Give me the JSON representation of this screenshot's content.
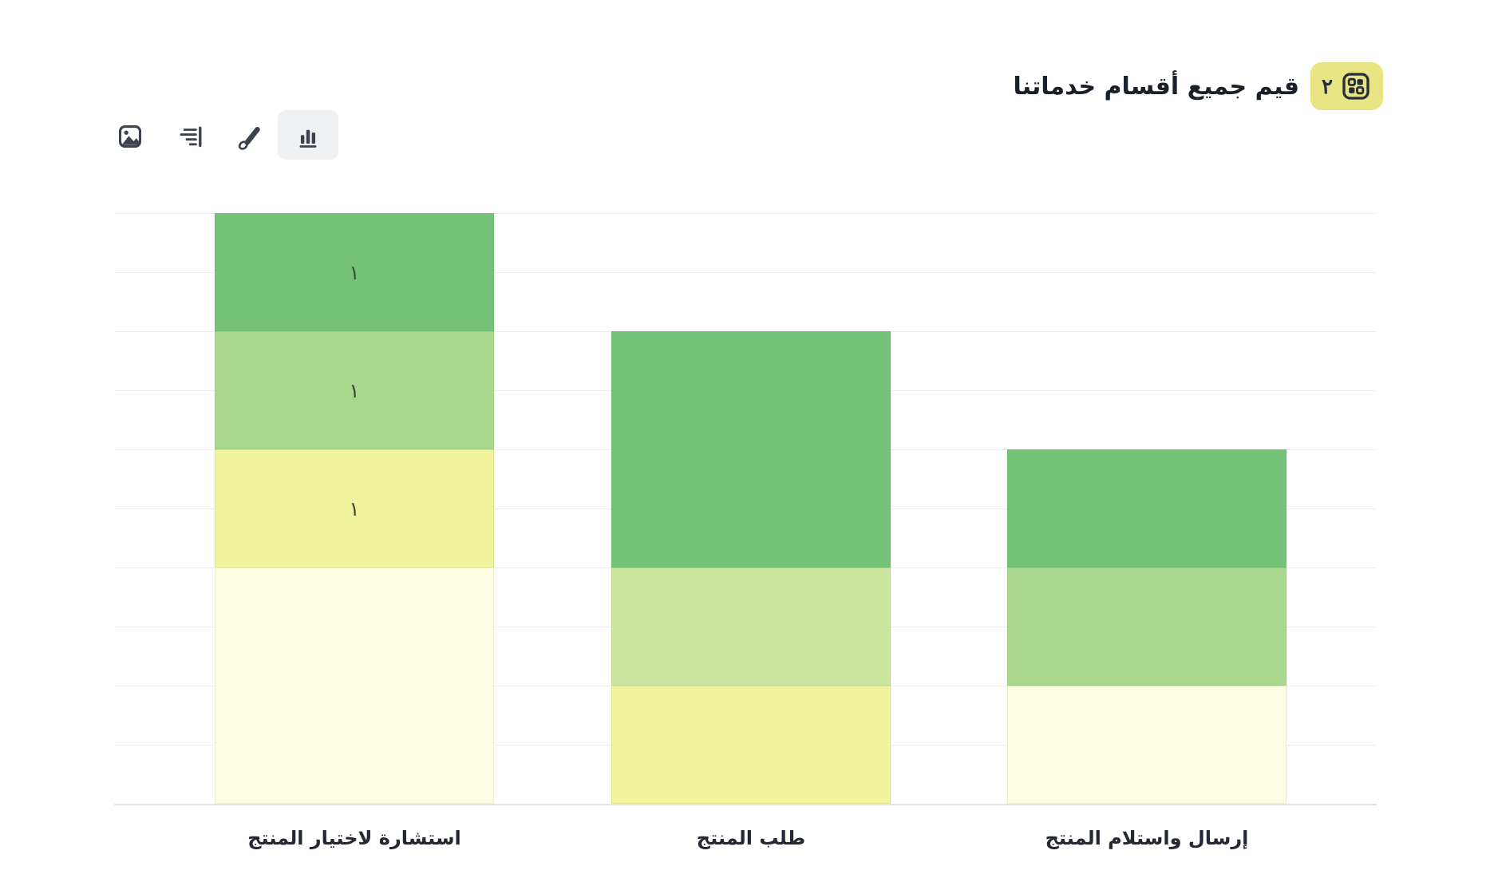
{
  "header": {
    "title": "قيم جميع أقسام خدماتنا",
    "badge": {
      "count": "٢",
      "icon": "grid-blocks-icon"
    }
  },
  "toolbar": {
    "buttons": [
      {
        "id": "image",
        "icon": "image-icon",
        "active": false
      },
      {
        "id": "align",
        "icon": "align-lines-icon",
        "active": false
      },
      {
        "id": "brush",
        "icon": "paintbrush-icon",
        "active": false
      },
      {
        "id": "chart",
        "icon": "bar-chart-icon",
        "active": true
      }
    ]
  },
  "chart_data": {
    "type": "bar",
    "stacked": true,
    "rtl": true,
    "grid": true,
    "ylim": [
      0,
      5
    ],
    "gridline_step": 0.5,
    "categories": [
      "استشارة لاختيار المنتج",
      "طلب المنتج",
      "إرسال واستلام المنتج"
    ],
    "palette": {
      "green": "#75c379",
      "light_green": "#a9d78b",
      "yellow_green": "#cde69e",
      "yellow": "#eff49d",
      "cream": "#fdfde3"
    },
    "bars": [
      {
        "category": "استشارة لاختيار المنتج",
        "total": 5,
        "segments": [
          {
            "color": "#75c379",
            "value": 1,
            "label": "١"
          },
          {
            "color": "#a9d78b",
            "value": 1,
            "label": "١"
          },
          {
            "color": "#eff49d",
            "value": 1,
            "label": "١"
          },
          {
            "color": "#fdfde3",
            "value": 2,
            "label": ""
          }
        ]
      },
      {
        "category": "طلب المنتج",
        "total": 4,
        "segments": [
          {
            "color": "#75c379",
            "value": 2,
            "label": ""
          },
          {
            "color": "#cde69e",
            "value": 1,
            "label": ""
          },
          {
            "color": "#eff49d",
            "value": 1,
            "label": ""
          }
        ]
      },
      {
        "category": "إرسال واستلام المنتج",
        "total": 3,
        "segments": [
          {
            "color": "#75c379",
            "value": 1,
            "label": ""
          },
          {
            "color": "#a9d78b",
            "value": 1,
            "label": ""
          },
          {
            "color": "#fdfde3",
            "value": 1,
            "label": ""
          }
        ]
      }
    ]
  }
}
